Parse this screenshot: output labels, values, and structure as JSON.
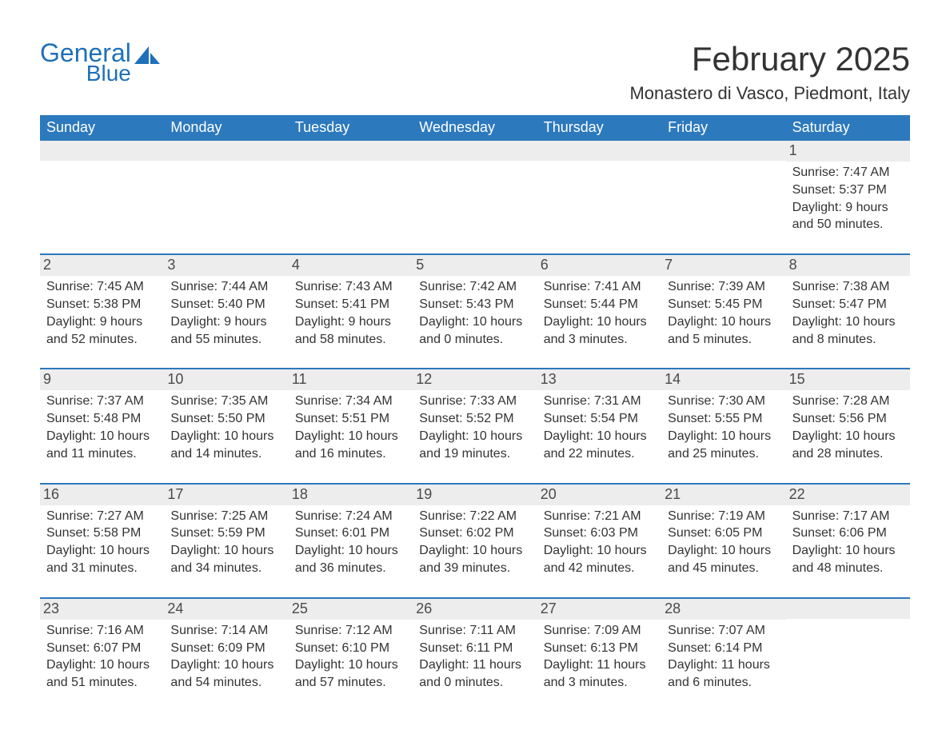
{
  "brand": {
    "general": "General",
    "blue": "Blue"
  },
  "colors": {
    "brand_blue": "#1e70b8",
    "header_bg": "#2d79bd",
    "header_text": "#ffffff",
    "daynum_bg": "#ededed",
    "text": "#333333",
    "row_border": "#2d79bd",
    "page_bg": "#ffffff"
  },
  "title": "February 2025",
  "location": "Monastero di Vasco, Piedmont, Italy",
  "weekdays": [
    "Sunday",
    "Monday",
    "Tuesday",
    "Wednesday",
    "Thursday",
    "Friday",
    "Saturday"
  ],
  "labels": {
    "sunrise": "Sunrise",
    "sunset": "Sunset",
    "daylight": "Daylight"
  },
  "weeks": [
    [
      null,
      null,
      null,
      null,
      null,
      null,
      {
        "n": "1",
        "sunrise": "7:47 AM",
        "sunset": "5:37 PM",
        "dl1": "9 hours",
        "dl2": "and 50 minutes."
      }
    ],
    [
      {
        "n": "2",
        "sunrise": "7:45 AM",
        "sunset": "5:38 PM",
        "dl1": "9 hours",
        "dl2": "and 52 minutes."
      },
      {
        "n": "3",
        "sunrise": "7:44 AM",
        "sunset": "5:40 PM",
        "dl1": "9 hours",
        "dl2": "and 55 minutes."
      },
      {
        "n": "4",
        "sunrise": "7:43 AM",
        "sunset": "5:41 PM",
        "dl1": "9 hours",
        "dl2": "and 58 minutes."
      },
      {
        "n": "5",
        "sunrise": "7:42 AM",
        "sunset": "5:43 PM",
        "dl1": "10 hours",
        "dl2": "and 0 minutes."
      },
      {
        "n": "6",
        "sunrise": "7:41 AM",
        "sunset": "5:44 PM",
        "dl1": "10 hours",
        "dl2": "and 3 minutes."
      },
      {
        "n": "7",
        "sunrise": "7:39 AM",
        "sunset": "5:45 PM",
        "dl1": "10 hours",
        "dl2": "and 5 minutes."
      },
      {
        "n": "8",
        "sunrise": "7:38 AM",
        "sunset": "5:47 PM",
        "dl1": "10 hours",
        "dl2": "and 8 minutes."
      }
    ],
    [
      {
        "n": "9",
        "sunrise": "7:37 AM",
        "sunset": "5:48 PM",
        "dl1": "10 hours",
        "dl2": "and 11 minutes."
      },
      {
        "n": "10",
        "sunrise": "7:35 AM",
        "sunset": "5:50 PM",
        "dl1": "10 hours",
        "dl2": "and 14 minutes."
      },
      {
        "n": "11",
        "sunrise": "7:34 AM",
        "sunset": "5:51 PM",
        "dl1": "10 hours",
        "dl2": "and 16 minutes."
      },
      {
        "n": "12",
        "sunrise": "7:33 AM",
        "sunset": "5:52 PM",
        "dl1": "10 hours",
        "dl2": "and 19 minutes."
      },
      {
        "n": "13",
        "sunrise": "7:31 AM",
        "sunset": "5:54 PM",
        "dl1": "10 hours",
        "dl2": "and 22 minutes."
      },
      {
        "n": "14",
        "sunrise": "7:30 AM",
        "sunset": "5:55 PM",
        "dl1": "10 hours",
        "dl2": "and 25 minutes."
      },
      {
        "n": "15",
        "sunrise": "7:28 AM",
        "sunset": "5:56 PM",
        "dl1": "10 hours",
        "dl2": "and 28 minutes."
      }
    ],
    [
      {
        "n": "16",
        "sunrise": "7:27 AM",
        "sunset": "5:58 PM",
        "dl1": "10 hours",
        "dl2": "and 31 minutes."
      },
      {
        "n": "17",
        "sunrise": "7:25 AM",
        "sunset": "5:59 PM",
        "dl1": "10 hours",
        "dl2": "and 34 minutes."
      },
      {
        "n": "18",
        "sunrise": "7:24 AM",
        "sunset": "6:01 PM",
        "dl1": "10 hours",
        "dl2": "and 36 minutes."
      },
      {
        "n": "19",
        "sunrise": "7:22 AM",
        "sunset": "6:02 PM",
        "dl1": "10 hours",
        "dl2": "and 39 minutes."
      },
      {
        "n": "20",
        "sunrise": "7:21 AM",
        "sunset": "6:03 PM",
        "dl1": "10 hours",
        "dl2": "and 42 minutes."
      },
      {
        "n": "21",
        "sunrise": "7:19 AM",
        "sunset": "6:05 PM",
        "dl1": "10 hours",
        "dl2": "and 45 minutes."
      },
      {
        "n": "22",
        "sunrise": "7:17 AM",
        "sunset": "6:06 PM",
        "dl1": "10 hours",
        "dl2": "and 48 minutes."
      }
    ],
    [
      {
        "n": "23",
        "sunrise": "7:16 AM",
        "sunset": "6:07 PM",
        "dl1": "10 hours",
        "dl2": "and 51 minutes."
      },
      {
        "n": "24",
        "sunrise": "7:14 AM",
        "sunset": "6:09 PM",
        "dl1": "10 hours",
        "dl2": "and 54 minutes."
      },
      {
        "n": "25",
        "sunrise": "7:12 AM",
        "sunset": "6:10 PM",
        "dl1": "10 hours",
        "dl2": "and 57 minutes."
      },
      {
        "n": "26",
        "sunrise": "7:11 AM",
        "sunset": "6:11 PM",
        "dl1": "11 hours",
        "dl2": "and 0 minutes."
      },
      {
        "n": "27",
        "sunrise": "7:09 AM",
        "sunset": "6:13 PM",
        "dl1": "11 hours",
        "dl2": "and 3 minutes."
      },
      {
        "n": "28",
        "sunrise": "7:07 AM",
        "sunset": "6:14 PM",
        "dl1": "11 hours",
        "dl2": "and 6 minutes."
      },
      null
    ]
  ]
}
